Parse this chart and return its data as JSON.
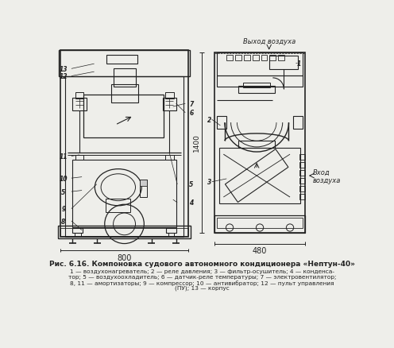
{
  "bg_color": "#eeeeea",
  "line_color": "#222222",
  "title_line1": "Рис. 6.16. Компоновка судового автономного кондиционера «Нептун-40»",
  "caption_line2": "1 — воздухонагреватель; 2 — реле давления; 3 — фильтр-осушитель; 4 — конденса-",
  "caption_line3": "тор; 5 — воздухоохладитель; 6 — датчик-реле температуры; 7 — электровентилятор;",
  "caption_line4": "8, 11 — амортизаторы; 9 — компрессор; 10 — антивибратор; 12 — пульт управления",
  "caption_line5": "(ПУ); 13 — корпус",
  "label_exit": "Выход воздуха",
  "label_enter": "Вход\nвоздуха",
  "dim_800": "800",
  "dim_480": "480",
  "dim_1400": "1400"
}
